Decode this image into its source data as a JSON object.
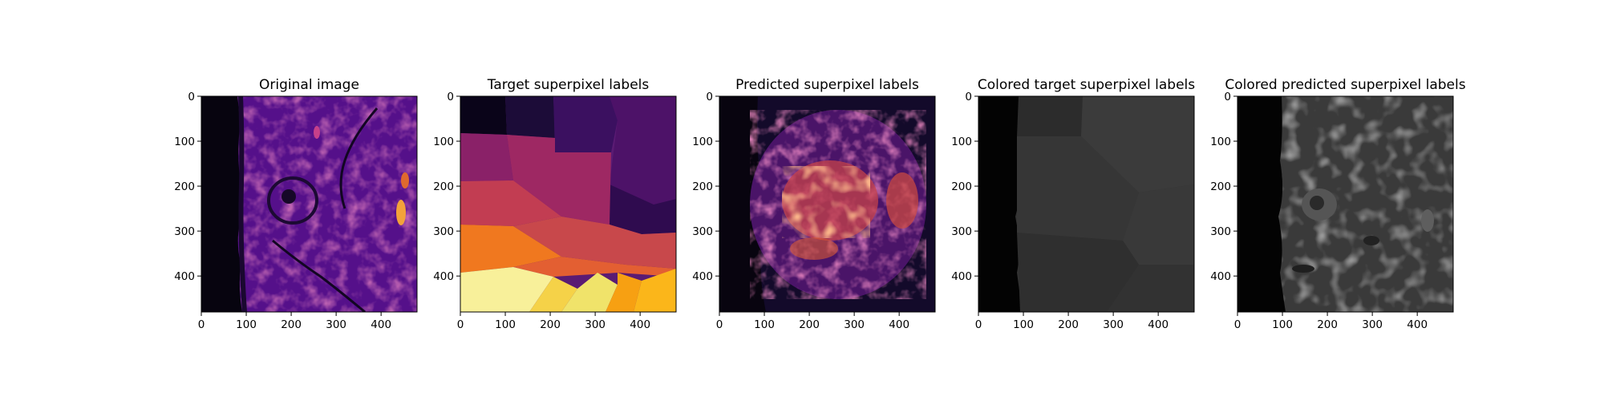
{
  "chart_data": [
    {
      "type": "heatmap",
      "title": "Original image",
      "colormap": "inferno",
      "content": "grayscale MRI cross-section rendered with inferno colormap",
      "xlim": [
        0,
        480
      ],
      "ylim": [
        480,
        0
      ],
      "xticks": [
        "0",
        "100",
        "200",
        "300",
        "400"
      ],
      "yticks": [
        "0",
        "100",
        "200",
        "300",
        "400"
      ]
    },
    {
      "type": "heatmap",
      "title": "Target superpixel labels",
      "colormap": "inferno",
      "content": "large flat-colored superpixel regions",
      "xlim": [
        0,
        480
      ],
      "ylim": [
        480,
        0
      ],
      "xticks": [
        "0",
        "100",
        "200",
        "300",
        "400"
      ],
      "yticks": [
        "0",
        "100",
        "200",
        "300",
        "400"
      ]
    },
    {
      "type": "heatmap",
      "title": "Predicted superpixel labels",
      "colormap": "inferno",
      "content": "fragmented small superpixel regions",
      "xlim": [
        0,
        480
      ],
      "ylim": [
        480,
        0
      ],
      "xticks": [
        "0",
        "100",
        "200",
        "300",
        "400"
      ],
      "yticks": [
        "0",
        "100",
        "200",
        "300",
        "400"
      ]
    },
    {
      "type": "heatmap",
      "title": "Colored target superpixel labels",
      "colormap": "gray",
      "content": "target superpixels colored by mean intensity",
      "xlim": [
        0,
        480
      ],
      "ylim": [
        480,
        0
      ],
      "xticks": [
        "0",
        "100",
        "200",
        "300",
        "400"
      ],
      "yticks": [
        "0",
        "100",
        "200",
        "300",
        "400"
      ]
    },
    {
      "type": "heatmap",
      "title": "Colored predicted superpixel labels",
      "colormap": "gray",
      "content": "predicted superpixels colored by mean intensity",
      "xlim": [
        0,
        480
      ],
      "ylim": [
        480,
        0
      ],
      "xticks": [
        "0",
        "100",
        "200",
        "300",
        "400"
      ],
      "yticks": [
        "0",
        "100",
        "200",
        "300",
        "400"
      ]
    }
  ]
}
